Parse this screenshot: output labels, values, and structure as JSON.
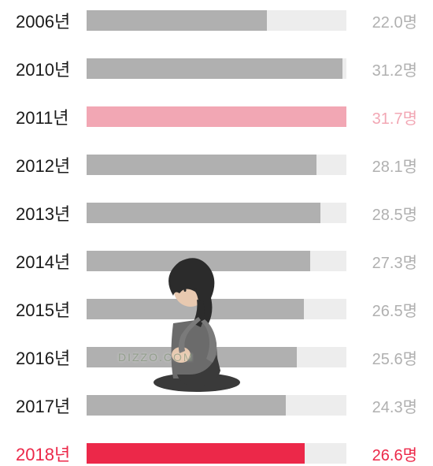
{
  "chart": {
    "type": "bar",
    "max_value": 31.7,
    "unit": "명",
    "year_suffix": "년",
    "default_year_color": "#1a1a1a",
    "default_bar_color": "#b0b0b0",
    "default_track_color": "#ededed",
    "default_value_color": "#b0b0b0",
    "rows": [
      {
        "year": "2006",
        "value_display": "22.0",
        "fill_pct": 69.4,
        "bar_color": "#b0b0b0",
        "year_color": "#1a1a1a",
        "value_color": "#b0b0b0"
      },
      {
        "year": "2010",
        "value_display": "31.2",
        "fill_pct": 98.4,
        "bar_color": "#b0b0b0",
        "year_color": "#1a1a1a",
        "value_color": "#b0b0b0"
      },
      {
        "year": "2011",
        "value_display": "31.7",
        "fill_pct": 100.0,
        "bar_color": "#f2a7b4",
        "year_color": "#1a1a1a",
        "value_color": "#f2a7b4"
      },
      {
        "year": "2012",
        "value_display": "28.1",
        "fill_pct": 88.6,
        "bar_color": "#b0b0b0",
        "year_color": "#1a1a1a",
        "value_color": "#b0b0b0"
      },
      {
        "year": "2013",
        "value_display": "28.5",
        "fill_pct": 89.9,
        "bar_color": "#b0b0b0",
        "year_color": "#1a1a1a",
        "value_color": "#b0b0b0"
      },
      {
        "year": "2014",
        "value_display": "27.3",
        "fill_pct": 86.1,
        "bar_color": "#b0b0b0",
        "year_color": "#1a1a1a",
        "value_color": "#b0b0b0"
      },
      {
        "year": "2015",
        "value_display": "26.5",
        "fill_pct": 83.6,
        "bar_color": "#b0b0b0",
        "year_color": "#1a1a1a",
        "value_color": "#b0b0b0"
      },
      {
        "year": "2016",
        "value_display": "25.6",
        "fill_pct": 80.8,
        "bar_color": "#b0b0b0",
        "year_color": "#1a1a1a",
        "value_color": "#b0b0b0"
      },
      {
        "year": "2017",
        "value_display": "24.3",
        "fill_pct": 76.7,
        "bar_color": "#b0b0b0",
        "year_color": "#1a1a1a",
        "value_color": "#b0b0b0"
      },
      {
        "year": "2018",
        "value_display": "26.6",
        "fill_pct": 83.9,
        "bar_color": "#ec2849",
        "year_color": "#ec2849",
        "value_color": "#ec2849"
      }
    ]
  },
  "watermark": {
    "text": "DIZZO.COM",
    "color": "rgba(120,140,110,0.6)"
  },
  "illustration": {
    "hair_color": "#2b2b2b",
    "skin_color": "#e8c9b0",
    "clothing_color": "#6b6b6b",
    "pants_color": "#3a3a3a"
  }
}
